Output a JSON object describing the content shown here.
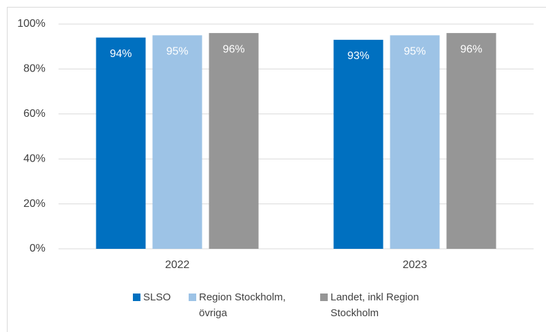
{
  "chart_data": {
    "type": "bar",
    "categories": [
      "2022",
      "2023"
    ],
    "series": [
      {
        "name": "SLSO",
        "color": "#0070c0",
        "values": [
          94,
          93
        ],
        "value_labels": [
          "94%",
          "93%"
        ]
      },
      {
        "name": "Region Stockholm, övriga",
        "color": "#9dc3e6",
        "values": [
          95,
          95
        ],
        "value_labels": [
          "95%",
          "95%"
        ]
      },
      {
        "name": "Landet, inkl Region Stockholm",
        "color": "#969696",
        "values": [
          96,
          96
        ],
        "value_labels": [
          "96%",
          "96%"
        ]
      }
    ],
    "ylim": [
      0,
      100
    ],
    "yticks": [
      {
        "value": 0,
        "label": "0%"
      },
      {
        "value": 20,
        "label": "20%"
      },
      {
        "value": 40,
        "label": "40%"
      },
      {
        "value": 60,
        "label": "60%"
      },
      {
        "value": 80,
        "label": "80%"
      },
      {
        "value": 100,
        "label": "100%"
      }
    ],
    "grid": true,
    "legend": "bottom"
  }
}
